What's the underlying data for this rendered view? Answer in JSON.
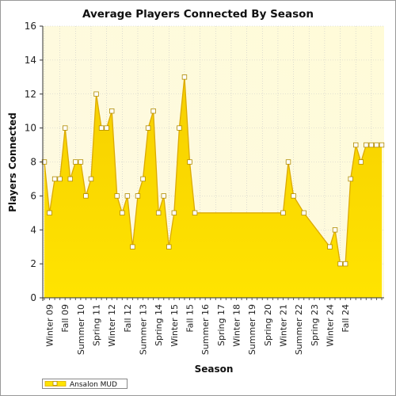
{
  "chart_data": {
    "type": "area",
    "title": "Average Players Connected By Season",
    "xlabel": "Season",
    "ylabel": "Players Connected",
    "ylim": [
      0,
      16
    ],
    "yticks": [
      0,
      2,
      4,
      6,
      8,
      10,
      12,
      14,
      16
    ],
    "xtick_labels": [
      "Winter 09",
      "Fall 09",
      "Summer 10",
      "Spring 11",
      "Winter 12",
      "Fall 12",
      "Summer 13",
      "Spring 14",
      "Winter 15",
      "Fall 15",
      "Summer 16",
      "Spring 17",
      "Winter 18",
      "Summer 19",
      "Spring 20",
      "Winter 21",
      "Summer 22",
      "Spring 23",
      "Winter 24",
      "Fall 24"
    ],
    "grid": true,
    "legend_position": "bottom-left",
    "series": [
      {
        "name": "Ansalon MUD",
        "color": "#ffe400",
        "line_color": "#dcaa00",
        "values": [
          8,
          5,
          7,
          7,
          10,
          7,
          8,
          8,
          6,
          7,
          12,
          10,
          10,
          11,
          6,
          5,
          6,
          3,
          6,
          7,
          10,
          11,
          5,
          6,
          3,
          5,
          10,
          13,
          8,
          5,
          null,
          null,
          null,
          null,
          null,
          null,
          null,
          null,
          null,
          null,
          null,
          null,
          null,
          null,
          null,
          null,
          5,
          8,
          6,
          null,
          5,
          null,
          null,
          null,
          null,
          3,
          4,
          2,
          2,
          7,
          9,
          8,
          9,
          9,
          9,
          9
        ]
      }
    ]
  }
}
